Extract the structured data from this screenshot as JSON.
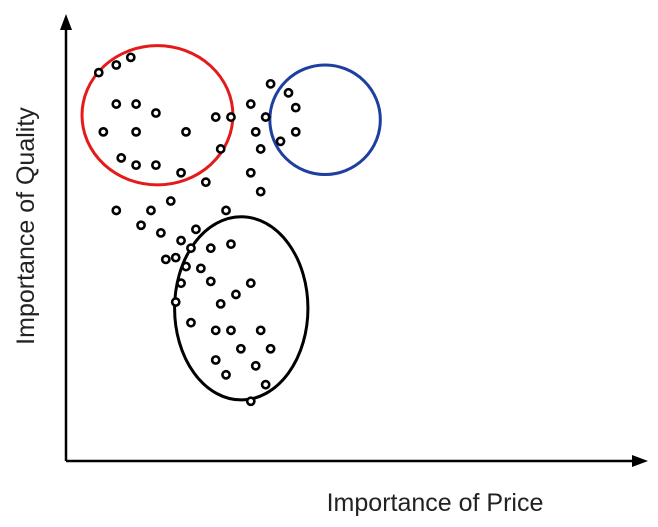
{
  "chart_data": {
    "type": "scatter",
    "title": "",
    "xlabel": "Importance of Price",
    "ylabel": "Importance of Quality",
    "xlim": [
      0,
      10
    ],
    "ylim": [
      0,
      10
    ],
    "grid": false,
    "ticks": false,
    "point_style": "hollow-circle",
    "colors": {
      "axes": "#000000",
      "points": "#000000",
      "cluster_red": "#e41b1b",
      "cluster_blue": "#1e3fa0",
      "cluster_black": "#000000"
    },
    "clusters": [
      {
        "id": "red",
        "color": "#e41b1b",
        "center": [
          2.4,
          7.7
        ],
        "radius_x": 1.98,
        "radius_y": 1.55
      },
      {
        "id": "blue",
        "color": "#1e3fa0",
        "center": [
          6.8,
          7.6
        ],
        "radius_x": 1.45,
        "radius_y": 1.22
      },
      {
        "id": "black",
        "color": "#000000",
        "center": [
          4.6,
          3.4
        ],
        "radius_x": 1.75,
        "radius_y": 2.04
      }
    ],
    "points": [
      {
        "x": 0.86,
        "y": 8.65
      },
      {
        "x": 1.32,
        "y": 8.82
      },
      {
        "x": 1.7,
        "y": 8.99
      },
      {
        "x": 1.32,
        "y": 7.95
      },
      {
        "x": 1.84,
        "y": 7.95
      },
      {
        "x": 2.36,
        "y": 7.75
      },
      {
        "x": 0.98,
        "y": 7.33
      },
      {
        "x": 1.84,
        "y": 7.33
      },
      {
        "x": 3.15,
        "y": 7.33
      },
      {
        "x": 1.45,
        "y": 6.75
      },
      {
        "x": 1.84,
        "y": 6.59
      },
      {
        "x": 2.36,
        "y": 6.59
      },
      {
        "x": 3.02,
        "y": 6.42
      },
      {
        "x": 3.67,
        "y": 6.21
      },
      {
        "x": 2.75,
        "y": 5.79
      },
      {
        "x": 1.32,
        "y": 5.58
      },
      {
        "x": 1.97,
        "y": 5.25
      },
      {
        "x": 2.23,
        "y": 5.58
      },
      {
        "x": 2.49,
        "y": 5.08
      },
      {
        "x": 3.93,
        "y": 7.66
      },
      {
        "x": 4.33,
        "y": 7.66
      },
      {
        "x": 4.85,
        "y": 7.95
      },
      {
        "x": 5.37,
        "y": 8.4
      },
      {
        "x": 5.24,
        "y": 7.66
      },
      {
        "x": 5.84,
        "y": 8.2
      },
      {
        "x": 6.03,
        "y": 7.87
      },
      {
        "x": 4.98,
        "y": 7.33
      },
      {
        "x": 4.06,
        "y": 6.95
      },
      {
        "x": 5.11,
        "y": 6.95
      },
      {
        "x": 5.63,
        "y": 7.12
      },
      {
        "x": 6.03,
        "y": 7.33
      },
      {
        "x": 4.85,
        "y": 6.42
      },
      {
        "x": 5.11,
        "y": 6.0
      },
      {
        "x": 4.2,
        "y": 5.58
      },
      {
        "x": 3.41,
        "y": 5.16
      },
      {
        "x": 3.02,
        "y": 4.91
      },
      {
        "x": 2.88,
        "y": 4.53
      },
      {
        "x": 3.28,
        "y": 4.74
      },
      {
        "x": 3.15,
        "y": 4.33
      },
      {
        "x": 3.8,
        "y": 4.74
      },
      {
        "x": 4.33,
        "y": 4.83
      },
      {
        "x": 2.62,
        "y": 4.49
      },
      {
        "x": 3.54,
        "y": 4.29
      },
      {
        "x": 3.8,
        "y": 4.0
      },
      {
        "x": 3.02,
        "y": 3.96
      },
      {
        "x": 2.88,
        "y": 3.54
      },
      {
        "x": 4.85,
        "y": 3.96
      },
      {
        "x": 4.06,
        "y": 3.5
      },
      {
        "x": 3.28,
        "y": 3.08
      },
      {
        "x": 3.93,
        "y": 2.91
      },
      {
        "x": 4.33,
        "y": 2.91
      },
      {
        "x": 4.46,
        "y": 3.71
      },
      {
        "x": 5.11,
        "y": 2.91
      },
      {
        "x": 4.59,
        "y": 2.5
      },
      {
        "x": 5.37,
        "y": 2.5
      },
      {
        "x": 3.93,
        "y": 2.25
      },
      {
        "x": 4.2,
        "y": 1.92
      },
      {
        "x": 4.98,
        "y": 2.12
      },
      {
        "x": 5.24,
        "y": 1.7
      },
      {
        "x": 4.85,
        "y": 1.33
      }
    ]
  }
}
